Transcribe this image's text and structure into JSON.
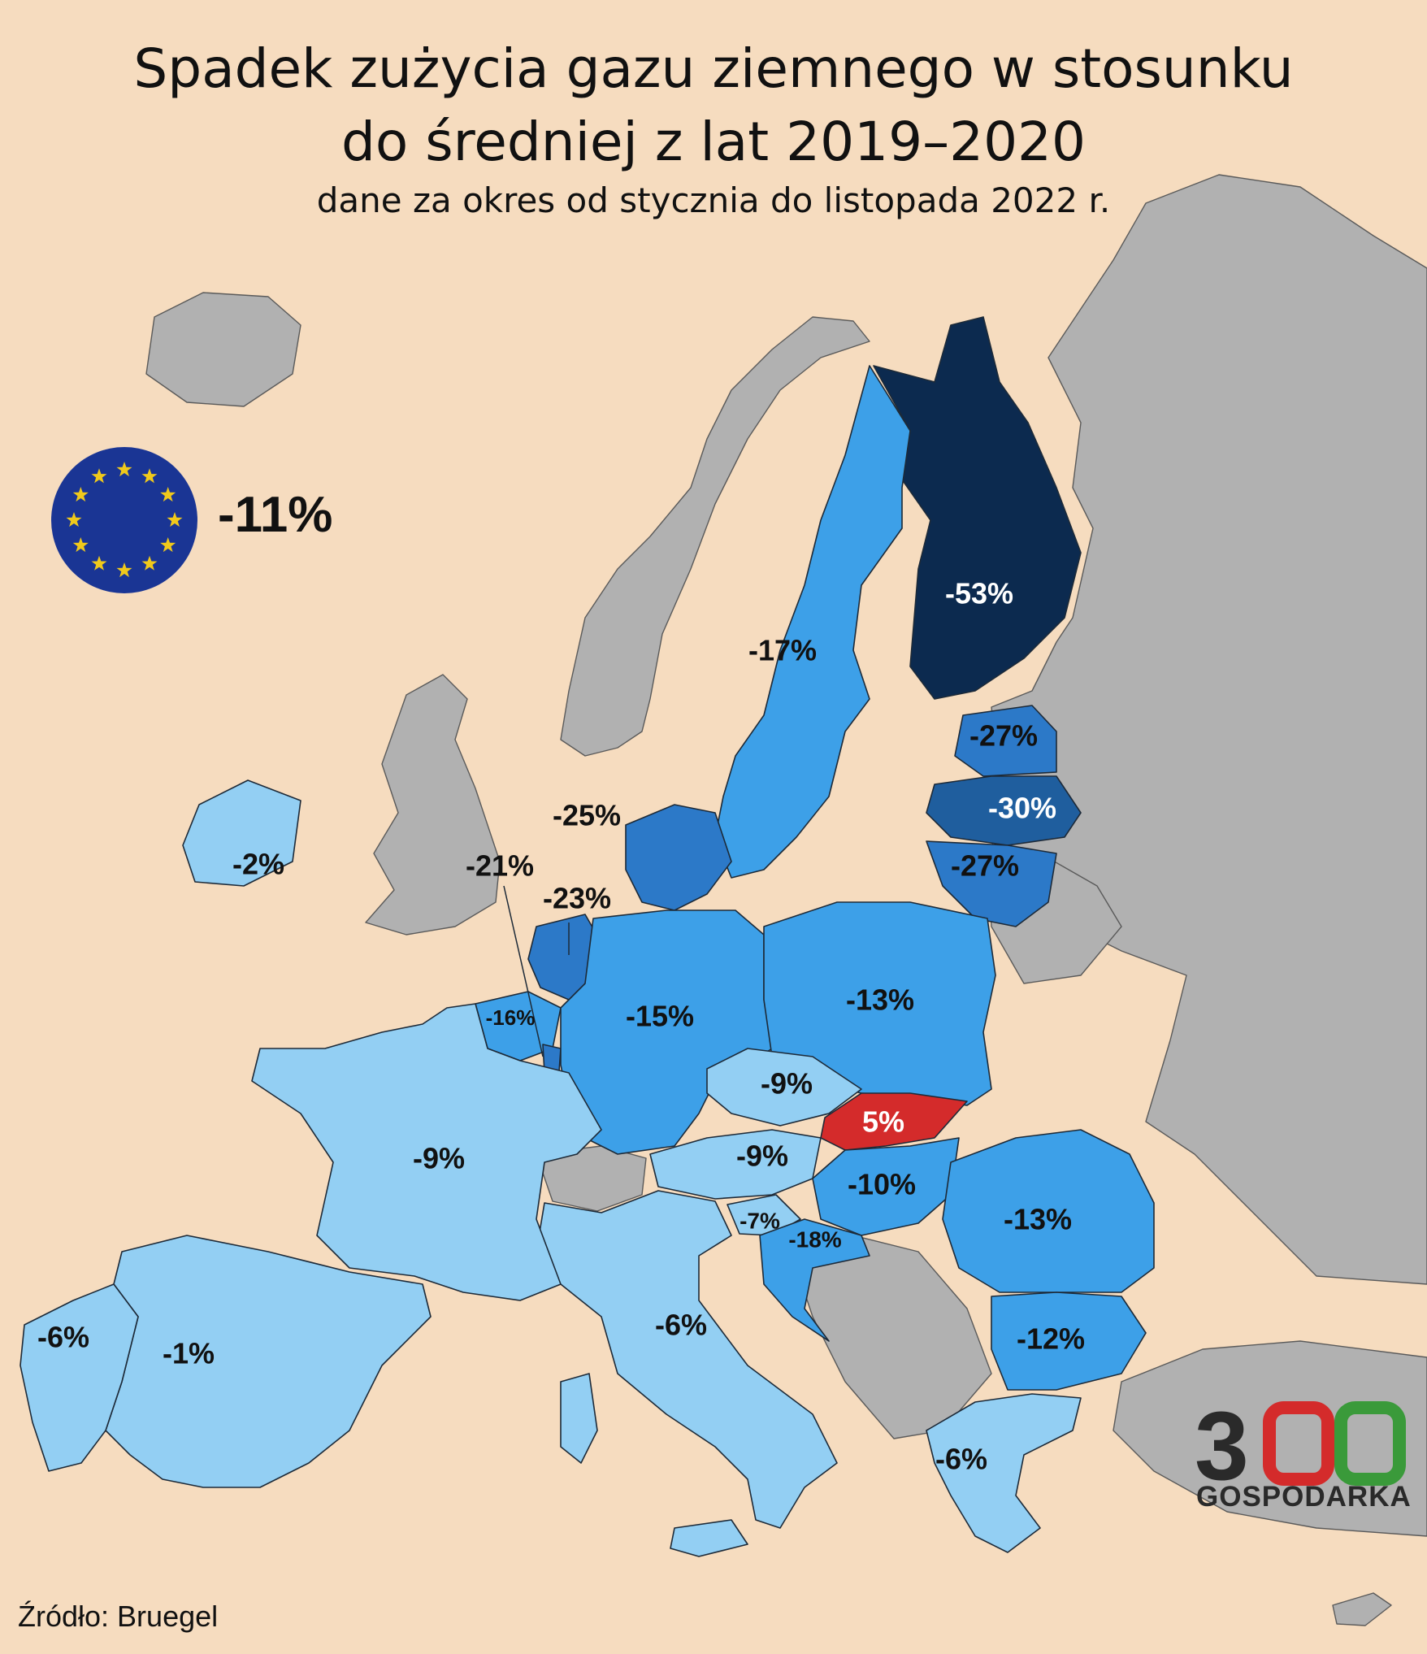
{
  "title": "Spadek zużycia gazu ziemnego w stosunku do średniej z lat 2019–2020",
  "title_line1": "Spadek zużycia gazu ziemnego w stosunku",
  "title_line2": "do średniej z lat 2019–2020",
  "subtitle": "dane za okres od stycznia do listopada 2022 r.",
  "eu_average": "-11%",
  "source": "Źródło: Bruegel",
  "logo": {
    "number": "300",
    "word": "GOSPODARKA"
  },
  "colors": {
    "background": "#f6dcbf",
    "non_eu": "#b1b1b1",
    "light": "#93cff3",
    "medium": "#3da0e8",
    "strong": "#2c79c8",
    "darker": "#1f5e9e",
    "darkest": "#0c2a4f",
    "increase": "#d42b2b",
    "eu_flag": "#1a3594",
    "eu_star": "#f0c91b"
  },
  "chart_data": {
    "type": "choropleth",
    "metric": "change in natural gas consumption",
    "unit": "%",
    "countries": [
      {
        "name": "Finland",
        "value": -53,
        "label": "-53%"
      },
      {
        "name": "Latvia",
        "value": -30,
        "label": "-30%"
      },
      {
        "name": "Estonia",
        "value": -27,
        "label": "-27%"
      },
      {
        "name": "Lithuania",
        "value": -27,
        "label": "-27%"
      },
      {
        "name": "Denmark",
        "value": -25,
        "label": "-25%"
      },
      {
        "name": "Netherlands",
        "value": -23,
        "label": "-23%"
      },
      {
        "name": "Luxembourg",
        "value": -21,
        "label": "-21%"
      },
      {
        "name": "Croatia",
        "value": -18,
        "label": "-18%"
      },
      {
        "name": "Sweden",
        "value": -17,
        "label": "-17%"
      },
      {
        "name": "Belgium",
        "value": -16,
        "label": "-16%"
      },
      {
        "name": "Germany",
        "value": -15,
        "label": "-15%"
      },
      {
        "name": "Poland",
        "value": -13,
        "label": "-13%"
      },
      {
        "name": "Romania",
        "value": -13,
        "label": "-13%"
      },
      {
        "name": "Bulgaria",
        "value": -12,
        "label": "-12%"
      },
      {
        "name": "Hungary",
        "value": -10,
        "label": "-10%"
      },
      {
        "name": "France",
        "value": -9,
        "label": "-9%"
      },
      {
        "name": "Czechia",
        "value": -9,
        "label": "-9%"
      },
      {
        "name": "Austria",
        "value": -9,
        "label": "-9%"
      },
      {
        "name": "Slovenia",
        "value": -7,
        "label": "-7%"
      },
      {
        "name": "Italy",
        "value": -6,
        "label": "-6%"
      },
      {
        "name": "Portugal",
        "value": -6,
        "label": "-6%"
      },
      {
        "name": "Greece",
        "value": -6,
        "label": "-6%"
      },
      {
        "name": "Ireland",
        "value": -2,
        "label": "-2%"
      },
      {
        "name": "Spain",
        "value": -1,
        "label": "-1%"
      },
      {
        "name": "Slovakia",
        "value": 5,
        "label": "5%"
      }
    ]
  }
}
